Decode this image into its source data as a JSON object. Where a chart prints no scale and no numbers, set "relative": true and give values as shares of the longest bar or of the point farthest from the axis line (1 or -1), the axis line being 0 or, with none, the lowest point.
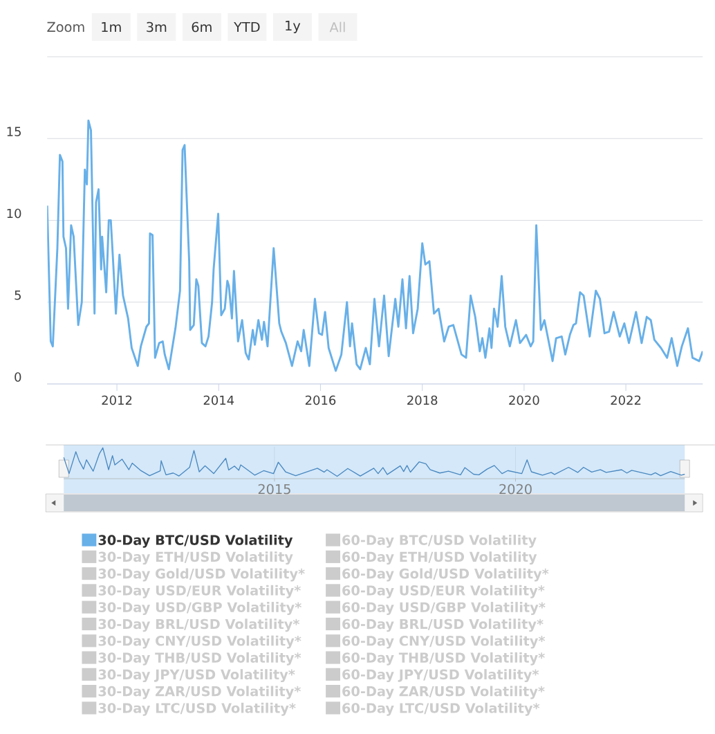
{
  "chart_data": [
    {
      "type": "line",
      "annotations": [
        "Zoom",
        "1m",
        "3m",
        "6m",
        "YTD",
        "1y",
        "All"
      ],
      "xlim": [
        2010.63,
        2023.51
      ],
      "xticks": [
        2012,
        2014,
        2016,
        2018,
        2020,
        2022
      ],
      "ylim": [
        0,
        20
      ],
      "yticks": [
        0,
        5,
        10,
        15,
        {
          "value": 20,
          "label": null
        }
      ],
      "grid": "y",
      "legend": "bottom",
      "series": [
        {
          "name": "30-Day BTC/USD Volatility",
          "color": "#68b0e8",
          "x": [
            2010.63,
            2010.7,
            2010.74,
            2010.79,
            2010.83,
            2010.88,
            2010.93,
            2010.95,
            2011.0,
            2011.04,
            2011.1,
            2011.15,
            2011.24,
            2011.31,
            2011.37,
            2011.41,
            2011.44,
            2011.49,
            2011.56,
            2011.59,
            2011.64,
            2011.69,
            2011.71,
            2011.79,
            2011.84,
            2011.88,
            2011.92,
            2011.98,
            2012.05,
            2012.12,
            2012.22,
            2012.29,
            2012.41,
            2012.47,
            2012.58,
            2012.63,
            2012.65,
            2012.7,
            2012.75,
            2012.83,
            2012.9,
            2012.94,
            2013.02,
            2013.15,
            2013.24,
            2013.29,
            2013.33,
            2013.42,
            2013.44,
            2013.51,
            2013.56,
            2013.6,
            2013.67,
            2013.74,
            2013.8,
            2013.87,
            2013.9,
            2013.99,
            2014.05,
            2014.12,
            2014.17,
            2014.2,
            2014.26,
            2014.3,
            2014.38,
            2014.46,
            2014.53,
            2014.59,
            2014.67,
            2014.71,
            2014.78,
            2014.85,
            2014.89,
            2014.96,
            2015.08,
            2015.19,
            2015.23,
            2015.32,
            2015.44,
            2015.55,
            2015.62,
            2015.67,
            2015.78,
            2015.89,
            2015.97,
            2016.03,
            2016.09,
            2016.16,
            2016.3,
            2016.41,
            2016.52,
            2016.58,
            2016.62,
            2016.71,
            2016.78,
            2016.89,
            2016.97,
            2017.06,
            2017.15,
            2017.25,
            2017.34,
            2017.47,
            2017.53,
            2017.61,
            2017.68,
            2017.75,
            2017.82,
            2017.91,
            2018.0,
            2018.06,
            2018.14,
            2018.23,
            2018.32,
            2018.43,
            2018.52,
            2018.61,
            2018.77,
            2018.86,
            2018.95,
            2019.04,
            2019.13,
            2019.18,
            2019.24,
            2019.32,
            2019.36,
            2019.41,
            2019.48,
            2019.56,
            2019.63,
            2019.72,
            2019.84,
            2019.92,
            2020.04,
            2020.13,
            2020.18,
            2020.24,
            2020.33,
            2020.4,
            2020.56,
            2020.63,
            2020.74,
            2020.81,
            2020.9,
            2020.97,
            2021.02,
            2021.1,
            2021.17,
            2021.29,
            2021.41,
            2021.49,
            2021.58,
            2021.67,
            2021.76,
            2021.88,
            2021.97,
            2022.06,
            2022.2,
            2022.31,
            2022.41,
            2022.49,
            2022.56,
            2022.69,
            2022.81,
            2022.9,
            2023.01,
            2023.1,
            2023.22,
            2023.31,
            2023.44,
            2023.51
          ],
          "values": [
            10.9,
            2.6,
            2.3,
            5.6,
            8.3,
            14.0,
            13.6,
            9.0,
            8.3,
            4.6,
            9.7,
            9.0,
            3.6,
            5.0,
            13.1,
            12.2,
            16.1,
            15.5,
            4.3,
            11.1,
            11.9,
            7.0,
            9.0,
            5.6,
            10.0,
            10.0,
            7.8,
            4.3,
            7.9,
            5.4,
            4.0,
            2.2,
            1.1,
            2.3,
            3.5,
            3.7,
            9.2,
            9.1,
            1.6,
            2.5,
            2.6,
            1.8,
            0.9,
            3.4,
            5.7,
            14.3,
            14.6,
            7.5,
            3.3,
            3.6,
            6.4,
            6.0,
            2.5,
            2.3,
            2.9,
            5.0,
            7.0,
            10.4,
            4.2,
            4.6,
            6.3,
            6.0,
            4.0,
            6.9,
            2.6,
            3.9,
            1.9,
            1.5,
            3.3,
            2.4,
            3.9,
            2.7,
            3.8,
            2.3,
            8.3,
            3.7,
            3.2,
            2.5,
            1.1,
            2.6,
            2.0,
            3.3,
            1.1,
            5.2,
            3.1,
            3.0,
            4.4,
            2.2,
            0.8,
            1.8,
            5.0,
            2.3,
            3.7,
            1.2,
            0.9,
            2.2,
            1.2,
            5.2,
            2.3,
            5.4,
            1.7,
            5.2,
            3.5,
            6.4,
            3.4,
            6.6,
            3.1,
            4.6,
            8.6,
            7.3,
            7.5,
            4.3,
            4.6,
            2.6,
            3.5,
            3.6,
            1.8,
            1.6,
            5.4,
            4.1,
            2.0,
            2.8,
            1.6,
            3.4,
            2.2,
            4.6,
            3.5,
            6.6,
            3.5,
            2.3,
            3.9,
            2.5,
            3.0,
            2.3,
            2.6,
            9.7,
            3.3,
            3.9,
            1.4,
            2.8,
            2.9,
            1.8,
            3.0,
            3.6,
            3.7,
            5.6,
            5.4,
            2.9,
            5.7,
            5.2,
            3.1,
            3.2,
            4.4,
            2.9,
            3.7,
            2.5,
            4.4,
            2.5,
            4.1,
            3.9,
            2.7,
            2.2,
            1.6,
            2.8,
            1.1,
            2.3,
            3.4,
            1.6,
            1.4,
            2.0
          ]
        },
        {
          "name": "60-Day BTC/USD Volatility",
          "color": "#cccccc"
        },
        {
          "name": "30-Day ETH/USD Volatility",
          "color": "#cccccc"
        },
        {
          "name": "60-Day ETH/USD Volatility",
          "color": "#cccccc"
        },
        {
          "name": "30-Day Gold/USD Volatility*",
          "color": "#cccccc"
        },
        {
          "name": "60-Day Gold/USD Volatility*",
          "color": "#cccccc"
        },
        {
          "name": "30-Day USD/EUR Volatility*",
          "color": "#cccccc"
        },
        {
          "name": "60-Day USD/EUR Volatility*",
          "color": "#cccccc"
        },
        {
          "name": "30-Day USD/GBP Volatility*",
          "color": "#cccccc"
        },
        {
          "name": "60-Day USD/GBP Volatility*",
          "color": "#cccccc"
        },
        {
          "name": "30-Day BRL/USD Volatility*",
          "color": "#cccccc"
        },
        {
          "name": "60-Day BRL/USD Volatility*",
          "color": "#cccccc"
        },
        {
          "name": "30-Day CNY/USD Volatility*",
          "color": "#cccccc"
        },
        {
          "name": "60-Day CNY/USD Volatility*",
          "color": "#cccccc"
        },
        {
          "name": "30-Day THB/USD Volatility*",
          "color": "#cccccc"
        },
        {
          "name": "60-Day THB/USD Volatility*",
          "color": "#cccccc"
        },
        {
          "name": "30-Day JPY/USD Volatility*",
          "color": "#cccccc"
        },
        {
          "name": "60-Day JPY/USD Volatility*",
          "color": "#cccccc"
        },
        {
          "name": "30-Day ZAR/USD Volatility*",
          "color": "#cccccc"
        },
        {
          "name": "60-Day ZAR/USD Volatility*",
          "color": "#cccccc"
        },
        {
          "name": "30-Day LTC/USD Volatility*",
          "color": "#cccccc"
        },
        {
          "name": "60-Day LTC/USD Volatility*",
          "color": "#cccccc"
        }
      ]
    },
    {
      "type": "line",
      "relative": true,
      "xlim": [
        2010.63,
        2023.51
      ],
      "xticks": [
        2015,
        2020
      ],
      "grid": "x",
      "tick_labels": "x",
      "series": [
        {
          "color": "#4a88c0",
          "x": [
            2010.63,
            2010.74,
            2010.88,
            2010.95,
            2011.04,
            2011.1,
            2011.24,
            2011.37,
            2011.44,
            2011.56,
            2011.64,
            2011.69,
            2011.84,
            2011.98,
            2012.05,
            2012.22,
            2012.41,
            2012.63,
            2012.65,
            2012.75,
            2012.9,
            2013.02,
            2013.24,
            2013.33,
            2013.44,
            2013.56,
            2013.74,
            2013.99,
            2014.05,
            2014.17,
            2014.26,
            2014.3,
            2014.59,
            2014.78,
            2014.98,
            2015.08,
            2015.23,
            2015.44,
            2015.89,
            2016.03,
            2016.09,
            2016.3,
            2016.52,
            2016.78,
            2017.06,
            2017.15,
            2017.25,
            2017.34,
            2017.61,
            2017.68,
            2017.75,
            2017.82,
            2018.0,
            2018.14,
            2018.23,
            2018.43,
            2018.61,
            2018.86,
            2018.95,
            2019.13,
            2019.24,
            2019.41,
            2019.56,
            2019.72,
            2019.84,
            2020.13,
            2020.24,
            2020.33,
            2020.56,
            2020.74,
            2020.81,
            2021.1,
            2021.29,
            2021.41,
            2021.58,
            2021.76,
            2021.88,
            2022.2,
            2022.31,
            2022.41,
            2022.81,
            2022.9,
            2023.01,
            2023.22,
            2023.44,
            2023.51
          ],
          "values": [
            0.68,
            0.14,
            0.87,
            0.56,
            0.29,
            0.6,
            0.22,
            0.81,
            1,
            0.27,
            0.74,
            0.43,
            0.62,
            0.27,
            0.49,
            0.25,
            0.07,
            0.23,
            0.57,
            0.1,
            0.16,
            0.06,
            0.35,
            0.91,
            0.2,
            0.4,
            0.14,
            0.65,
            0.26,
            0.39,
            0.25,
            0.43,
            0.09,
            0.24,
            0.14,
            0.52,
            0.2,
            0.07,
            0.32,
            0.19,
            0.27,
            0.05,
            0.31,
            0.06,
            0.32,
            0.14,
            0.34,
            0.11,
            0.4,
            0.21,
            0.41,
            0.19,
            0.53,
            0.47,
            0.27,
            0.16,
            0.22,
            0.1,
            0.34,
            0.12,
            0.1,
            0.29,
            0.41,
            0.14,
            0.24,
            0.14,
            0.6,
            0.2,
            0.09,
            0.18,
            0.11,
            0.35,
            0.18,
            0.35,
            0.19,
            0.27,
            0.18,
            0.27,
            0.16,
            0.25,
            0.1,
            0.17,
            0.07,
            0.21,
            0.09,
            0.12
          ]
        }
      ]
    }
  ]
}
